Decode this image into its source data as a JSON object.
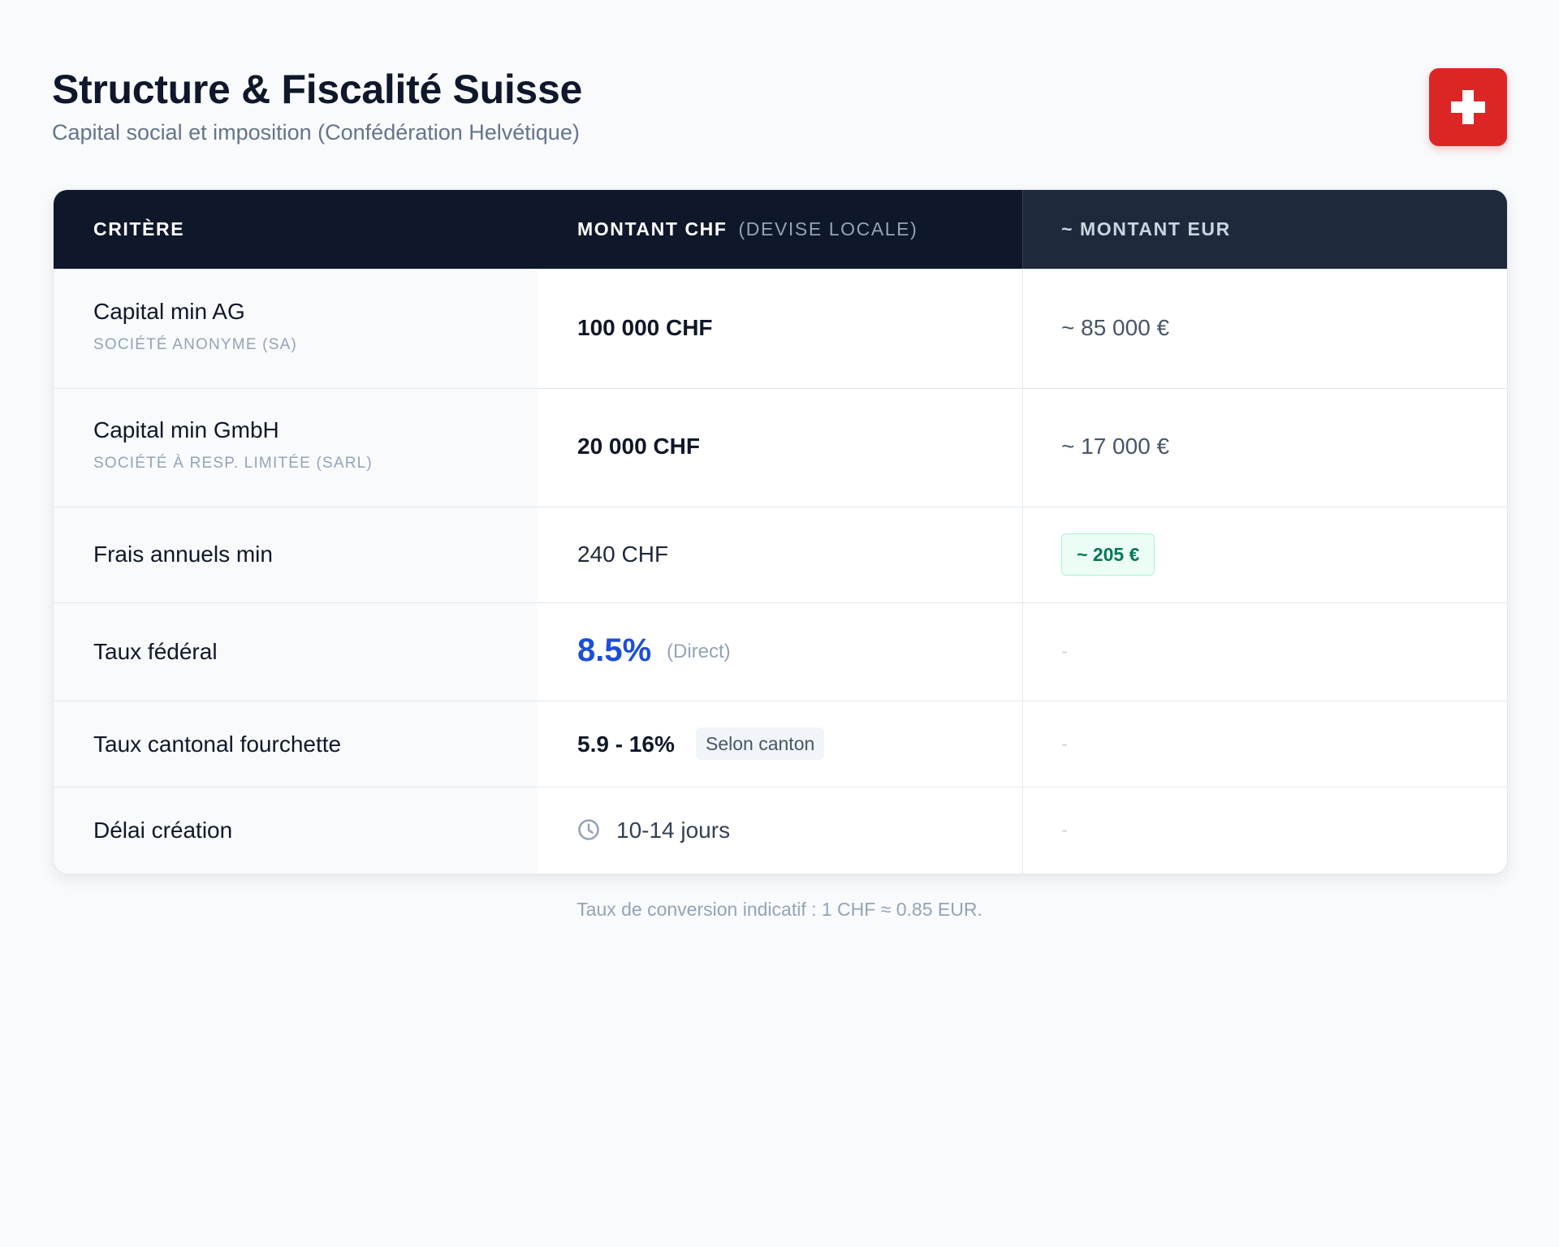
{
  "header": {
    "title": "Structure & Fiscalité Suisse",
    "subtitle": "Capital social et imposition (Confédération Helvétique)",
    "flag_icon": "swiss-flag-icon"
  },
  "table": {
    "columns": {
      "criteria": "Critère",
      "chf": "Montant CHF",
      "chf_sub": "(Devise locale)",
      "eur": "~ Montant EUR"
    },
    "rows": [
      {
        "label": "Capital min AG",
        "sublabel": "Société Anonyme (SA)",
        "chf": "100 000 CHF",
        "eur": "~ 85 000 €"
      },
      {
        "label": "Capital min GmbH",
        "sublabel": "Société à resp. limitée (SARL)",
        "chf": "20 000 CHF",
        "eur": "~ 17 000 €"
      },
      {
        "label": "Frais annuels min",
        "chf": "240 CHF",
        "eur": "~ 205 €"
      },
      {
        "label": "Taux fédéral",
        "chf": "8.5%",
        "chf_note": "(Direct)",
        "eur": "-"
      },
      {
        "label": "Taux cantonal fourchette",
        "chf": "5.9 - 16%",
        "chf_badge": "Selon canton",
        "eur": "-"
      },
      {
        "label": "Délai création",
        "chf": "10-14 jours",
        "chf_icon": "clock-icon",
        "eur": "-"
      }
    ]
  },
  "footnote": "Taux de conversion indicatif : 1 CHF ≈ 0.85 EUR.",
  "colors": {
    "flag_red": "#dc2626",
    "header_dark": "#0f172a",
    "accent_blue": "#1d4ed8",
    "badge_green": "#047857"
  }
}
